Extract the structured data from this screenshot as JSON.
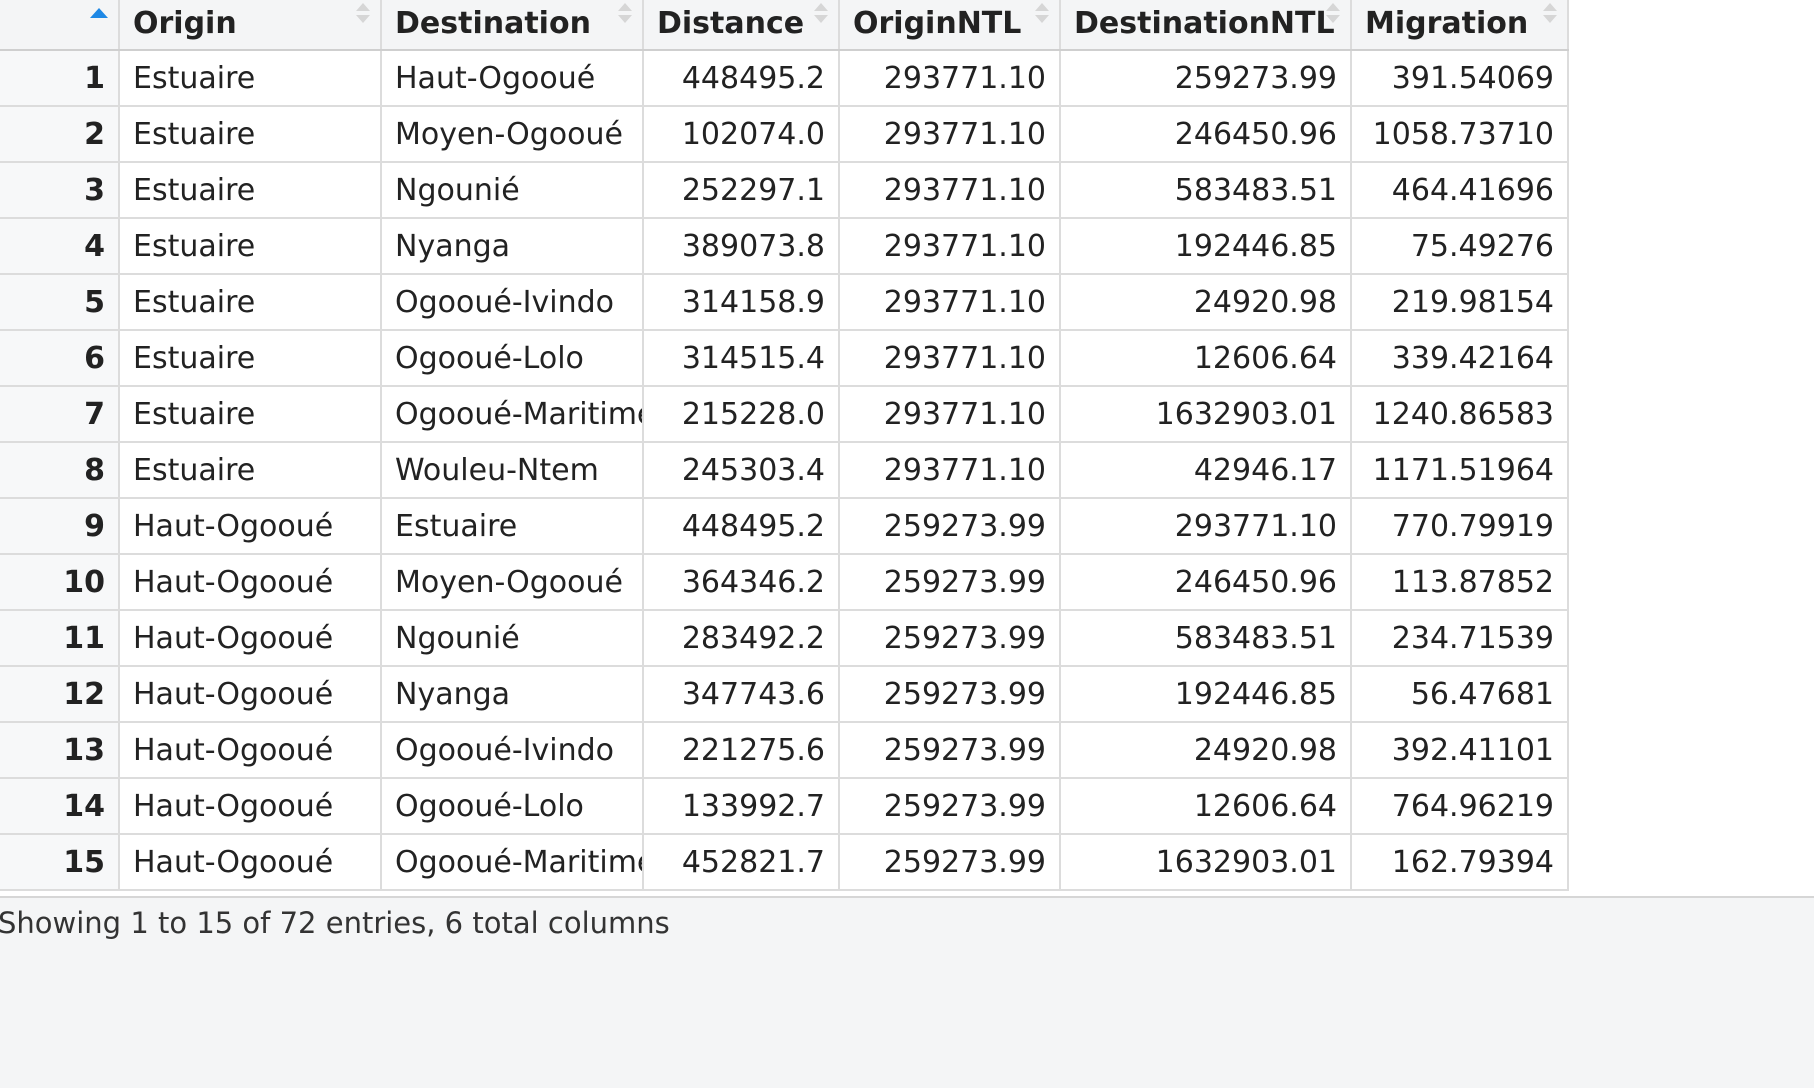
{
  "table": {
    "columns": [
      {
        "key": "origin",
        "label": "Origin"
      },
      {
        "key": "destination",
        "label": "Destination"
      },
      {
        "key": "distance",
        "label": "Distance"
      },
      {
        "key": "origin_ntl",
        "label": "OriginNTL"
      },
      {
        "key": "destination_ntl",
        "label": "DestinationNTL"
      },
      {
        "key": "migration",
        "label": "Migration"
      }
    ],
    "sort_column": "row index",
    "sort_direction": "ascending",
    "rows": [
      {
        "idx": "1",
        "origin": "Estuaire",
        "destination": "Haut-Ogooué",
        "distance": "448495.2",
        "origin_ntl": "293771.10",
        "destination_ntl": "259273.99",
        "migration": "391.54069"
      },
      {
        "idx": "2",
        "origin": "Estuaire",
        "destination": "Moyen-Ogooué",
        "distance": "102074.0",
        "origin_ntl": "293771.10",
        "destination_ntl": "246450.96",
        "migration": "1058.73710"
      },
      {
        "idx": "3",
        "origin": "Estuaire",
        "destination": "Ngounié",
        "distance": "252297.1",
        "origin_ntl": "293771.10",
        "destination_ntl": "583483.51",
        "migration": "464.41696"
      },
      {
        "idx": "4",
        "origin": "Estuaire",
        "destination": "Nyanga",
        "distance": "389073.8",
        "origin_ntl": "293771.10",
        "destination_ntl": "192446.85",
        "migration": "75.49276"
      },
      {
        "idx": "5",
        "origin": "Estuaire",
        "destination": "Ogooué-Ivindo",
        "distance": "314158.9",
        "origin_ntl": "293771.10",
        "destination_ntl": "24920.98",
        "migration": "219.98154"
      },
      {
        "idx": "6",
        "origin": "Estuaire",
        "destination": "Ogooué-Lolo",
        "distance": "314515.4",
        "origin_ntl": "293771.10",
        "destination_ntl": "12606.64",
        "migration": "339.42164"
      },
      {
        "idx": "7",
        "origin": "Estuaire",
        "destination": "Ogooué-Maritime",
        "distance": "215228.0",
        "origin_ntl": "293771.10",
        "destination_ntl": "1632903.01",
        "migration": "1240.86583"
      },
      {
        "idx": "8",
        "origin": "Estuaire",
        "destination": "Wouleu-Ntem",
        "distance": "245303.4",
        "origin_ntl": "293771.10",
        "destination_ntl": "42946.17",
        "migration": "1171.51964"
      },
      {
        "idx": "9",
        "origin": "Haut-Ogooué",
        "destination": "Estuaire",
        "distance": "448495.2",
        "origin_ntl": "259273.99",
        "destination_ntl": "293771.10",
        "migration": "770.79919"
      },
      {
        "idx": "10",
        "origin": "Haut-Ogooué",
        "destination": "Moyen-Ogooué",
        "distance": "364346.2",
        "origin_ntl": "259273.99",
        "destination_ntl": "246450.96",
        "migration": "113.87852"
      },
      {
        "idx": "11",
        "origin": "Haut-Ogooué",
        "destination": "Ngounié",
        "distance": "283492.2",
        "origin_ntl": "259273.99",
        "destination_ntl": "583483.51",
        "migration": "234.71539"
      },
      {
        "idx": "12",
        "origin": "Haut-Ogooué",
        "destination": "Nyanga",
        "distance": "347743.6",
        "origin_ntl": "259273.99",
        "destination_ntl": "192446.85",
        "migration": "56.47681"
      },
      {
        "idx": "13",
        "origin": "Haut-Ogooué",
        "destination": "Ogooué-Ivindo",
        "distance": "221275.6",
        "origin_ntl": "259273.99",
        "destination_ntl": "24920.98",
        "migration": "392.41101"
      },
      {
        "idx": "14",
        "origin": "Haut-Ogooué",
        "destination": "Ogooué-Lolo",
        "distance": "133992.7",
        "origin_ntl": "259273.99",
        "destination_ntl": "12606.64",
        "migration": "764.96219"
      },
      {
        "idx": "15",
        "origin": "Haut-Ogooué",
        "destination": "Ogooué-Maritime",
        "distance": "452821.7",
        "origin_ntl": "259273.99",
        "destination_ntl": "1632903.01",
        "migration": "162.79394"
      }
    ]
  },
  "footer": {
    "info": "Showing 1 to 15 of 72 entries, 6 total columns"
  },
  "colors": {
    "sort_active": "#1e88e5",
    "header_bg": "#f4f5f6",
    "grid_line": "#dcdcdc"
  },
  "icons": {
    "sort_active": "caret-up-icon",
    "sortable": "sort-updown-icon"
  }
}
